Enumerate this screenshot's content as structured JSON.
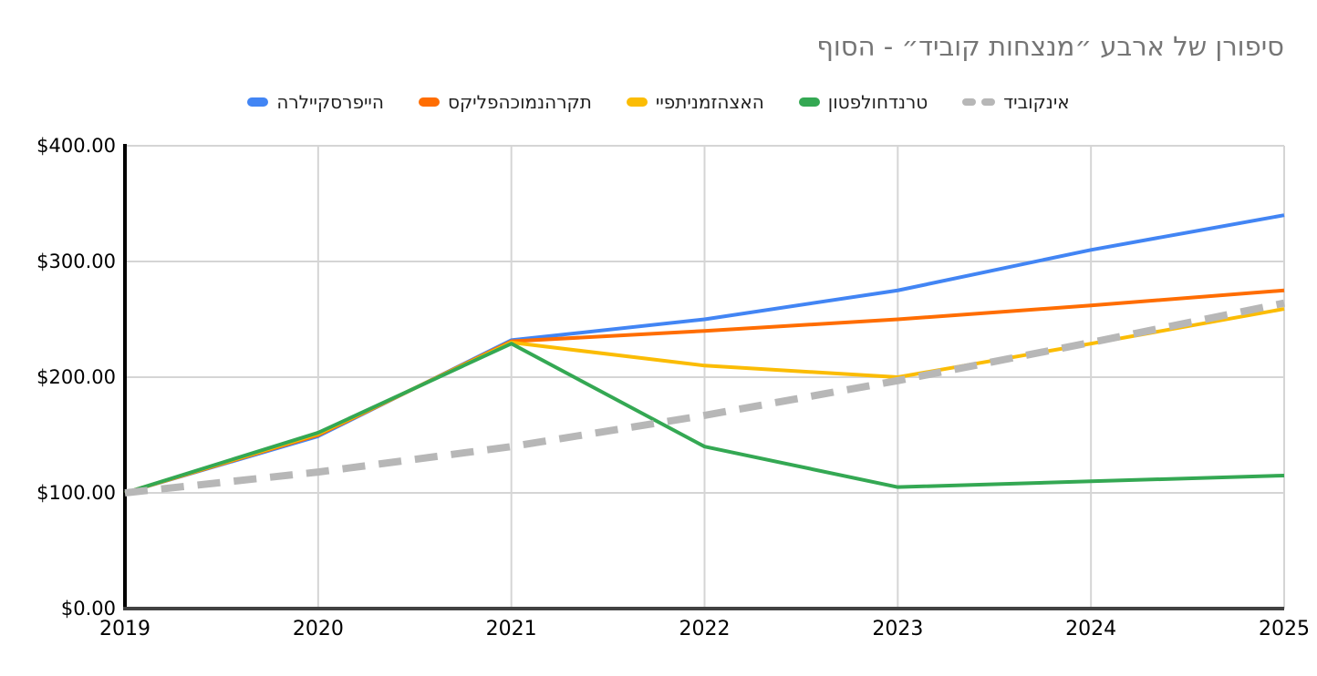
{
  "title": "סיפורן של ארבע ״מנצחות קוביד״ - הסוף",
  "legend": {
    "position": "top",
    "items": [
      {
        "label": "הייפרסקיילרה",
        "color": "#4285F4",
        "dashed": false
      },
      {
        "label": "תקרהנמוכהפליקס",
        "color": "#FF6D01",
        "dashed": false
      },
      {
        "label": "האצהזמניתפיי",
        "color": "#FBBC04",
        "dashed": false
      },
      {
        "label": "טרנדחולפטון",
        "color": "#34A853",
        "dashed": false
      },
      {
        "label": "אינקוביד",
        "color": "#B7B7B7",
        "dashed": true
      }
    ]
  },
  "chart_data": {
    "type": "line",
    "title": "סיפורן של ארבע ״מנצחות קוביד״ - הסוף",
    "x": [
      2019,
      2020,
      2021,
      2022,
      2023,
      2024,
      2025
    ],
    "x_tick_labels": [
      "2019",
      "2020",
      "2021",
      "2022",
      "2023",
      "2024",
      "2025"
    ],
    "y_ticks": [
      {
        "value": 0,
        "label": "$0.00"
      },
      {
        "value": 100,
        "label": "$100.00"
      },
      {
        "value": 200,
        "label": "$200.00"
      },
      {
        "value": 300,
        "label": "$300.00"
      },
      {
        "value": 400,
        "label": "$400.00"
      }
    ],
    "ylim": [
      0,
      400
    ],
    "xlabel": "",
    "ylabel": "",
    "grid": true,
    "legend_position": "top",
    "series": [
      {
        "name": "הייפרסקיילרה",
        "color": "#4285F4",
        "style": "solid",
        "values": [
          100,
          149,
          232,
          250,
          275,
          310,
          340
        ]
      },
      {
        "name": "תקרהנמוכהפליקס",
        "color": "#FF6D01",
        "style": "solid",
        "values": [
          100,
          150,
          231,
          240,
          250,
          262,
          275
        ]
      },
      {
        "name": "האצהזמניתפיי",
        "color": "#FBBC04",
        "style": "solid",
        "values": [
          100,
          151,
          230,
          210,
          200,
          229,
          259
        ]
      },
      {
        "name": "טרנדחולפטון",
        "color": "#34A853",
        "style": "solid",
        "values": [
          100,
          152,
          229,
          140,
          105,
          110,
          115
        ]
      },
      {
        "name": "אינקוביד",
        "color": "#B7B7B7",
        "style": "dashed",
        "values": [
          100,
          118,
          140,
          167,
          197,
          230,
          264
        ]
      }
    ]
  },
  "colors": {
    "background": "#FFFFFF",
    "title_text": "#757575",
    "legend_text": "#212121",
    "axis_text": "#000000",
    "gridline": "#D5D5D5",
    "y_axis_line": "#000000",
    "x_axis_line": "#424242"
  }
}
